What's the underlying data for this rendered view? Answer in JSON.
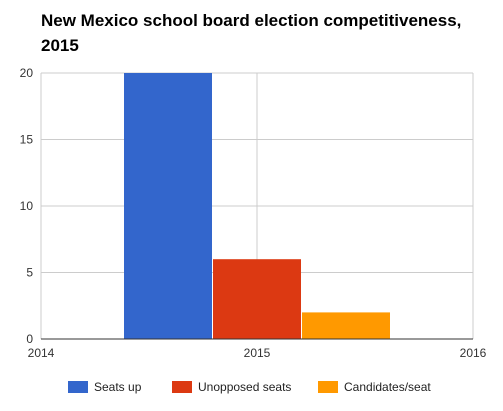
{
  "chart_data": {
    "type": "bar",
    "title": "New Mexico school board election competitiveness, 2015",
    "xlabel": "",
    "ylabel": "",
    "ylim": [
      0,
      20
    ],
    "y_ticks": [
      0,
      5,
      10,
      15,
      20
    ],
    "xlim": [
      2014,
      2016
    ],
    "x_ticks": [
      "2014",
      "2015",
      "2016"
    ],
    "categories": [
      "2015"
    ],
    "series": [
      {
        "name": "Seats up",
        "values": [
          20
        ],
        "color": "#3366cc"
      },
      {
        "name": "Unopposed seats",
        "values": [
          6
        ],
        "color": "#dc3912"
      },
      {
        "name": "Candidates/seat",
        "values": [
          2
        ],
        "color": "#ff9900"
      }
    ],
    "grid": true,
    "legend": "bottom"
  }
}
